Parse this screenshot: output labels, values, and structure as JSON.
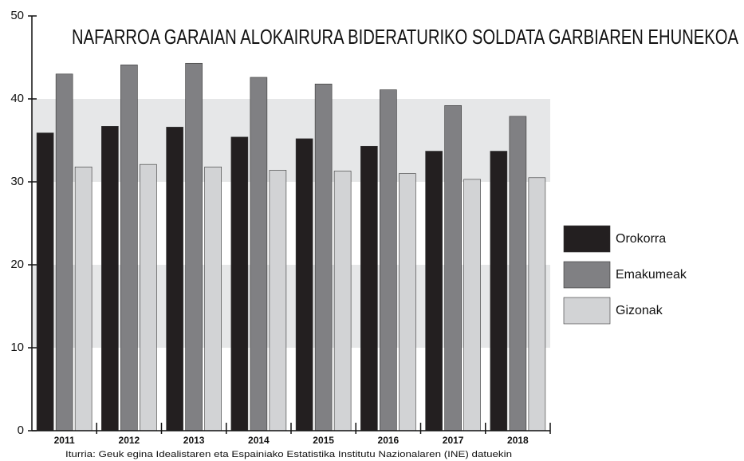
{
  "chart_data": {
    "type": "bar",
    "title": "NAFARROA GARAIAN ALOKAIRURA BIDERATURIKO SOLDATA GARBIAREN EHUNEKOA",
    "source": "Iturria: Geuk egina Idealistaren eta Espainiako Estatistika Institutu Nazionalaren (INE) datuekin",
    "categories": [
      "2011",
      "2012",
      "2013",
      "2014",
      "2015",
      "2016",
      "2017",
      "2018"
    ],
    "series": [
      {
        "name": "Orokorra",
        "color": "#231f20",
        "values": [
          35.9,
          36.7,
          36.6,
          35.4,
          35.2,
          34.3,
          33.7,
          33.7
        ]
      },
      {
        "name": "Emakumeak",
        "color": "#808083",
        "values": [
          43.0,
          44.1,
          44.3,
          42.6,
          41.8,
          41.1,
          39.2,
          37.9
        ]
      },
      {
        "name": "Gizonak",
        "color": "#d2d3d5",
        "values": [
          31.8,
          32.1,
          31.8,
          31.4,
          31.3,
          31.0,
          30.3,
          30.5
        ]
      }
    ],
    "ylim": [
      0,
      50
    ],
    "yticks": [
      0,
      10,
      20,
      30,
      40,
      50
    ],
    "band_shading": true,
    "legend": "right"
  }
}
